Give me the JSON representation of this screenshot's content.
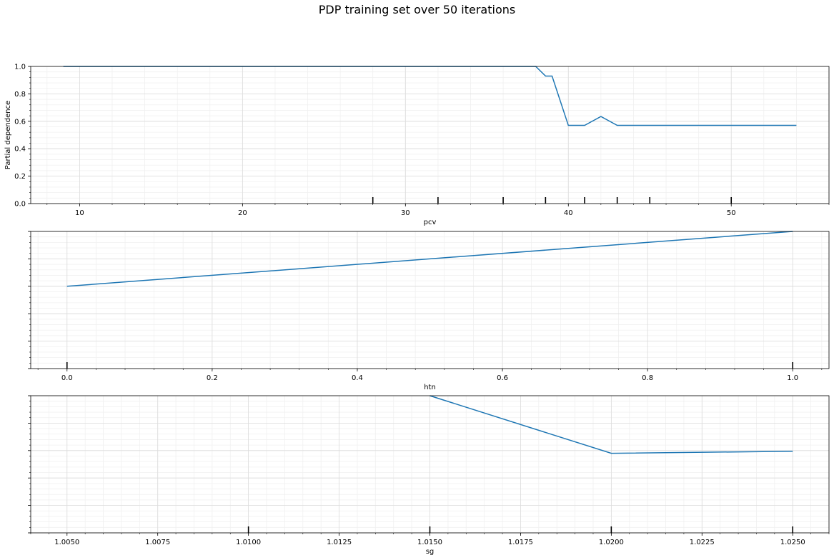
{
  "title": "PDP training set over 50 iterations",
  "colors": {
    "line": "#1f77b4",
    "grid_major": "#dcdcdc",
    "grid_minor": "#f0f0f0",
    "axes": "#000000"
  },
  "chart_data": [
    {
      "type": "line",
      "xlabel": "pcv",
      "ylabel": "Partial dependence",
      "xlim": [
        7,
        56
      ],
      "ylim": [
        0,
        1
      ],
      "xticks": [
        10,
        20,
        30,
        40,
        50
      ],
      "xtick_labels": [
        "10",
        "20",
        "30",
        "40",
        "50"
      ],
      "yticks": [
        0,
        0.2,
        0.4,
        0.6,
        0.8,
        1.0
      ],
      "ytick_labels": [
        "0.0",
        "0.2",
        "0.4",
        "0.6",
        "0.8",
        "1.0"
      ],
      "grid": true,
      "series": [
        {
          "x": [
            9,
            10,
            20,
            30,
            38,
            38.6,
            39,
            40,
            41,
            42,
            43,
            45,
            50,
            54
          ],
          "y": [
            1.0,
            1.0,
            1.0,
            1.0,
            1.0,
            0.93,
            0.93,
            0.57,
            0.57,
            0.635,
            0.57,
            0.57,
            0.57,
            0.57
          ]
        }
      ],
      "rug": [
        28,
        32,
        36,
        38.6,
        41,
        43,
        45,
        50
      ]
    },
    {
      "type": "line",
      "xlabel": "htn",
      "xlim": [
        -0.05,
        1.05
      ],
      "ylim": [
        0,
        1
      ],
      "xticks": [
        0,
        0.2,
        0.4,
        0.6,
        0.8,
        1.0
      ],
      "xtick_labels": [
        "0.0",
        "0.2",
        "0.4",
        "0.6",
        "0.8",
        "1.0"
      ],
      "grid": true,
      "series": [
        {
          "x": [
            0,
            1
          ],
          "y": [
            0.6,
            1.0
          ]
        }
      ],
      "rug": [
        0,
        1
      ]
    },
    {
      "type": "line",
      "xlabel": "sg",
      "xlim": [
        1.004,
        1.026
      ],
      "ylim": [
        0,
        1
      ],
      "xticks": [
        1.005,
        1.0075,
        1.01,
        1.0125,
        1.015,
        1.0175,
        1.02,
        1.0225,
        1.025
      ],
      "xtick_labels": [
        "1.0050",
        "1.0075",
        "1.0100",
        "1.0125",
        "1.0150",
        "1.0175",
        "1.0200",
        "1.0225",
        "1.0250"
      ],
      "grid": true,
      "series": [
        {
          "x": [
            1.015,
            1.02,
            1.025
          ],
          "y": [
            1.0,
            0.58,
            0.595
          ]
        }
      ],
      "rug": [
        1.01,
        1.015,
        1.02,
        1.025
      ]
    }
  ]
}
